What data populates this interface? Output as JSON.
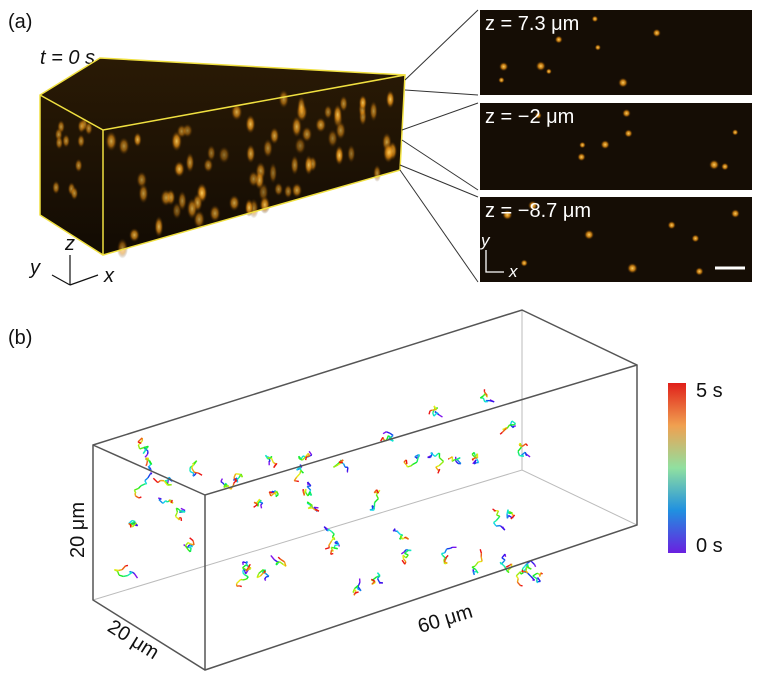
{
  "panel_a": {
    "label": "(a)",
    "time": "t = 0 s",
    "slices": [
      "z = 7.3 μm",
      "z = −2 μm",
      "z = −8.7 μm"
    ],
    "axes": {
      "z": "z",
      "y": "y",
      "x": "x"
    },
    "inset_axes": {
      "y": "y",
      "x": "x"
    }
  },
  "panel_b": {
    "label": "(b)",
    "colorbar": {
      "max": "5 s",
      "min": "0 s"
    },
    "dimensions": {
      "height": "20 μm",
      "depth": "20 μm",
      "length": "60 μm"
    }
  }
}
